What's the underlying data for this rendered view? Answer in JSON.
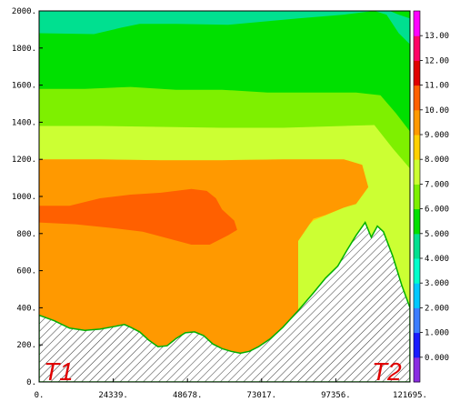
{
  "chart_data": {
    "type": "heatmap",
    "x_ticks": [
      "0.",
      "24339.",
      "48678.",
      "73017.",
      "97356.",
      "121695."
    ],
    "y_ticks": [
      "0.",
      "200.",
      "400.",
      "600.",
      "800.",
      "1000.",
      "1200.",
      "1400.",
      "1600.",
      "1800.",
      "2000."
    ],
    "xlim": [
      0,
      121695
    ],
    "ylim": [
      0,
      2000
    ],
    "colorbar": {
      "ticks": [
        "0.000",
        "1.000",
        "2.000",
        "3.000",
        "4.000",
        "5.000",
        "6.000",
        "7.000",
        "8.000",
        "9.000",
        "10.00",
        "11.00",
        "12.00",
        "13.00"
      ],
      "colors": [
        "#8a2be2",
        "#1a1aff",
        "#3d7dff",
        "#00c8ff",
        "#00ffcc",
        "#00e090",
        "#00e000",
        "#7ef000",
        "#ccff33",
        "#ffd000",
        "#ff9900",
        "#ff6000",
        "#e00000",
        "#ff0066",
        "#ff00ff"
      ]
    },
    "annotations": [
      "T1",
      "T2"
    ],
    "terrain": [
      [
        0,
        360
      ],
      [
        5000,
        330
      ],
      [
        10000,
        290
      ],
      [
        15000,
        278
      ],
      [
        20000,
        285
      ],
      [
        25000,
        300
      ],
      [
        28000,
        310
      ],
      [
        30000,
        295
      ],
      [
        33000,
        270
      ],
      [
        36000,
        225
      ],
      [
        39000,
        190
      ],
      [
        42000,
        195
      ],
      [
        45000,
        235
      ],
      [
        48000,
        265
      ],
      [
        51000,
        270
      ],
      [
        54000,
        250
      ],
      [
        57000,
        205
      ],
      [
        60000,
        180
      ],
      [
        63000,
        165
      ],
      [
        66000,
        155
      ],
      [
        69000,
        165
      ],
      [
        72000,
        190
      ],
      [
        76000,
        235
      ],
      [
        80000,
        295
      ],
      [
        85000,
        385
      ],
      [
        90000,
        480
      ],
      [
        94000,
        560
      ],
      [
        98000,
        625
      ],
      [
        101000,
        710
      ],
      [
        104000,
        790
      ],
      [
        107000,
        860
      ],
      [
        109000,
        780
      ],
      [
        111000,
        840
      ],
      [
        113000,
        810
      ],
      [
        116000,
        680
      ],
      [
        119000,
        520
      ],
      [
        121695,
        400
      ]
    ],
    "bands": [
      {
        "value": 5.5,
        "top": [
          [
            0,
            2000
          ],
          [
            121695,
            2000
          ]
        ]
      },
      {
        "value": 4.2,
        "top": [
          [
            0,
            2000
          ],
          [
            40000,
            2000
          ],
          [
            70000,
            2000
          ],
          [
            100000,
            2000
          ],
          [
            115000,
            2000
          ],
          [
            118000,
            1980
          ],
          [
            121695,
            1960
          ]
        ]
      },
      {
        "value": 5.0,
        "top": [
          [
            0,
            1880
          ],
          [
            18000,
            1875
          ],
          [
            27000,
            1910
          ],
          [
            33000,
            1930
          ],
          [
            45000,
            1930
          ],
          [
            62000,
            1925
          ],
          [
            85000,
            1960
          ],
          [
            100000,
            1980
          ],
          [
            110000,
            2000
          ],
          [
            114000,
            1980
          ],
          [
            118000,
            1880
          ],
          [
            121695,
            1820
          ]
        ]
      },
      {
        "value": 5.8,
        "top": [
          [
            0,
            1770
          ],
          [
            10000,
            1770
          ],
          [
            22000,
            1760
          ],
          [
            32000,
            1810
          ],
          [
            45000,
            1790
          ],
          [
            58000,
            1790
          ],
          [
            72000,
            1830
          ],
          [
            88000,
            1855
          ],
          [
            102000,
            1845
          ],
          [
            112000,
            1820
          ],
          [
            118000,
            1700
          ],
          [
            121695,
            1600
          ]
        ]
      },
      {
        "value": 6.6,
        "top": [
          [
            0,
            1580
          ],
          [
            15000,
            1580
          ],
          [
            30000,
            1590
          ],
          [
            45000,
            1575
          ],
          [
            60000,
            1575
          ],
          [
            75000,
            1560
          ],
          [
            90000,
            1560
          ],
          [
            104000,
            1560
          ],
          [
            112000,
            1545
          ],
          [
            117000,
            1450
          ],
          [
            121695,
            1350
          ]
        ]
      },
      {
        "value": 7.4,
        "top": [
          [
            0,
            1380
          ],
          [
            20000,
            1380
          ],
          [
            40000,
            1375
          ],
          [
            60000,
            1370
          ],
          [
            80000,
            1370
          ],
          [
            100000,
            1380
          ],
          [
            110000,
            1385
          ],
          [
            116000,
            1260
          ],
          [
            121695,
            1150
          ]
        ]
      },
      {
        "value": 8.4,
        "top": [
          [
            0,
            1200
          ],
          [
            20000,
            1200
          ],
          [
            40000,
            1195
          ],
          [
            60000,
            1195
          ],
          [
            80000,
            1200
          ],
          [
            100000,
            1200
          ],
          [
            106000,
            1170
          ],
          [
            108000,
            1050
          ],
          [
            104000,
            960
          ],
          [
            100000,
            940
          ],
          [
            90000,
            870
          ],
          [
            85000,
            790
          ],
          [
            83000,
            700
          ],
          [
            82000,
            580
          ],
          [
            78000,
            450
          ],
          [
            73000,
            330
          ],
          [
            70000,
            250
          ],
          [
            66000,
            190
          ],
          [
            69000,
            165
          ],
          [
            72000,
            190
          ],
          [
            76000,
            235
          ],
          [
            80000,
            295
          ],
          [
            85000,
            385
          ],
          [
            90000,
            480
          ],
          [
            94000,
            560
          ],
          [
            98000,
            625
          ],
          [
            101000,
            710
          ],
          [
            104000,
            790
          ],
          [
            107000,
            860
          ],
          [
            109000,
            780
          ],
          [
            111000,
            840
          ],
          [
            113000,
            810
          ],
          [
            116000,
            680
          ],
          [
            119000,
            520
          ],
          [
            121695,
            400
          ]
        ]
      },
      {
        "value": 9.0,
        "top": [
          [
            0,
            1200
          ],
          [
            20000,
            1200
          ],
          [
            40000,
            1195
          ],
          [
            60000,
            1195
          ],
          [
            80000,
            1200
          ],
          [
            100000,
            1200
          ],
          [
            106000,
            1170
          ],
          [
            108000,
            1050
          ],
          [
            104000,
            960
          ],
          [
            100000,
            940
          ],
          [
            94000,
            900
          ],
          [
            90000,
            880
          ],
          [
            85000,
            760
          ]
        ]
      },
      {
        "value": 10.4,
        "top": [
          [
            0,
            950
          ],
          [
            10000,
            950
          ],
          [
            20000,
            990
          ],
          [
            30000,
            1010
          ],
          [
            40000,
            1020
          ],
          [
            50000,
            1040
          ],
          [
            55000,
            1030
          ],
          [
            58000,
            990
          ],
          [
            60000,
            930
          ],
          [
            64000,
            870
          ],
          [
            65000,
            820
          ],
          [
            62000,
            790
          ],
          [
            56000,
            740
          ],
          [
            50000,
            740
          ],
          [
            42000,
            775
          ],
          [
            34000,
            810
          ],
          [
            24000,
            830
          ],
          [
            12000,
            850
          ],
          [
            0,
            860
          ]
        ]
      }
    ]
  }
}
